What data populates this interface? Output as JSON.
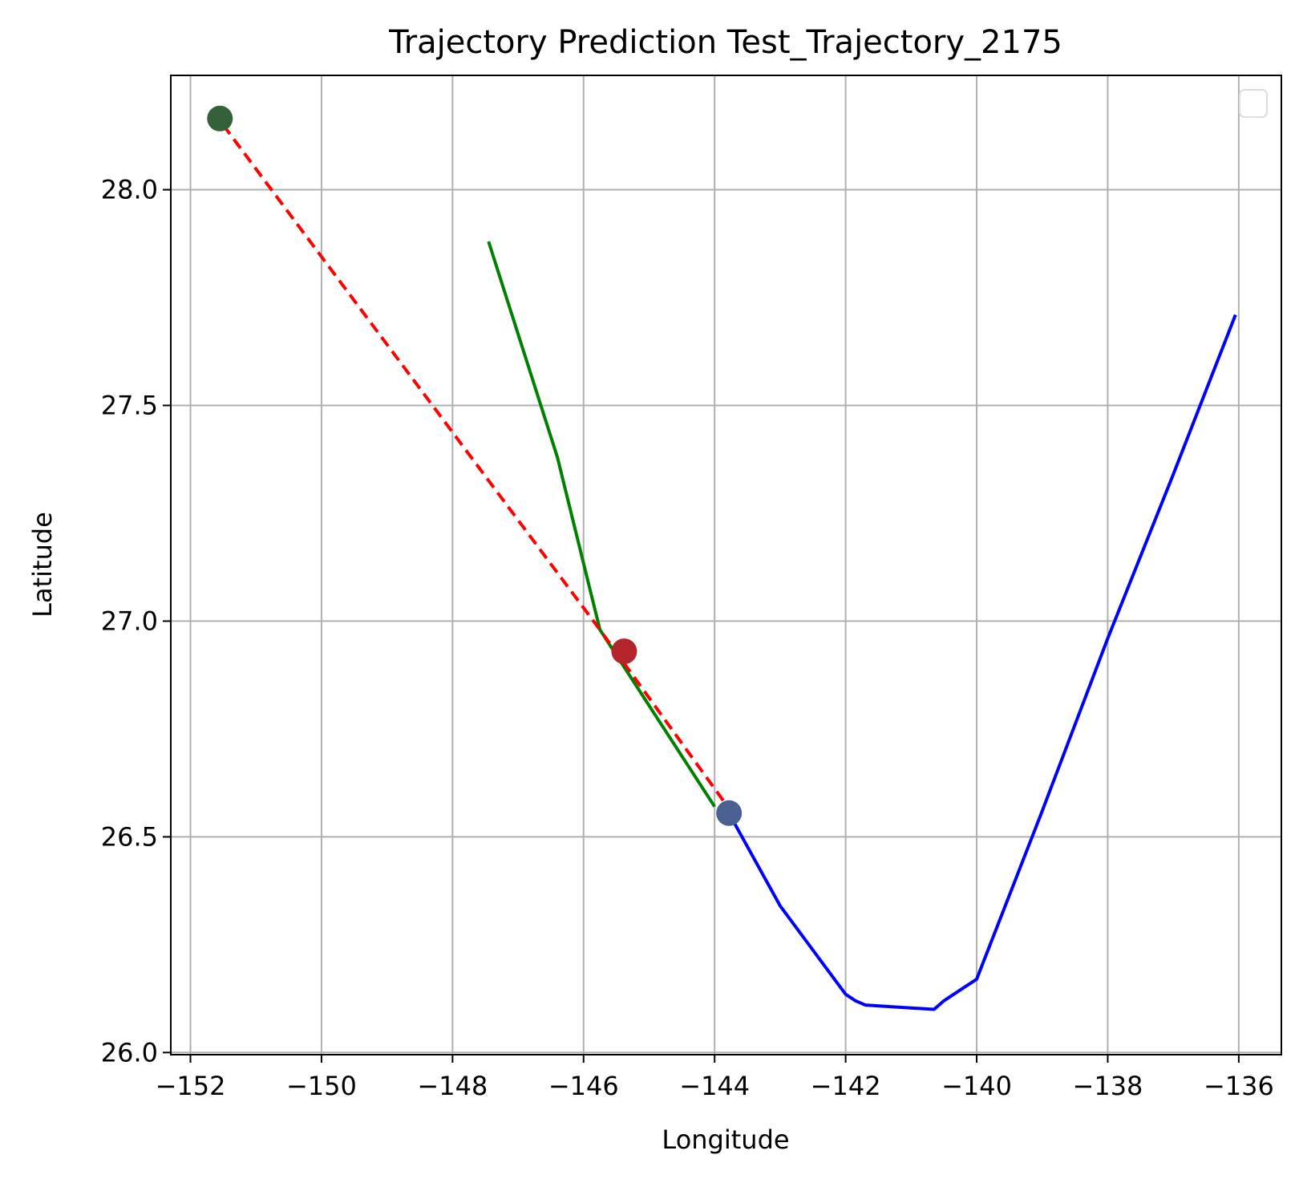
{
  "chart_data": {
    "type": "line",
    "title": "Trajectory Prediction Test_Trajectory_2175",
    "xlabel": "Longitude",
    "ylabel": "Latitude",
    "xlim": [
      -152.3,
      -135.35
    ],
    "ylim": [
      25.995,
      28.265
    ],
    "x_ticks": [
      -152,
      -150,
      -148,
      -146,
      -144,
      -142,
      -140,
      -138,
      -136
    ],
    "y_ticks": [
      26.0,
      26.5,
      27.0,
      27.5,
      28.0
    ],
    "x_tick_labels": [
      "−152",
      "−150",
      "−148",
      "−146",
      "−144",
      "−142",
      "−140",
      "−138",
      "−136"
    ],
    "y_tick_labels": [
      "26.0",
      "26.5",
      "27.0",
      "27.5",
      "28.0"
    ],
    "grid": true,
    "legend": "top-right (empty)",
    "series": [
      {
        "color": "#0000ff",
        "style": "solid",
        "x": [
          -136.05,
          -137.0,
          -138.0,
          -139.0,
          -140.0,
          -140.2,
          -140.5,
          -140.65,
          -141.2,
          -141.7,
          -141.85,
          -142.0,
          -143.0,
          -143.8
        ],
        "y": [
          27.71,
          27.34,
          26.96,
          26.56,
          26.17,
          26.15,
          26.12,
          26.1,
          26.105,
          26.11,
          26.12,
          26.135,
          26.34,
          26.56
        ]
      },
      {
        "color": "#008000",
        "style": "solid",
        "x": [
          -147.45,
          -146.4,
          -145.75,
          -144.0
        ],
        "y": [
          27.88,
          27.38,
          26.98,
          26.57
        ]
      },
      {
        "color": "#ff0000",
        "style": "dashed",
        "x": [
          -151.5,
          -145.75,
          -143.85
        ],
        "y": [
          28.15,
          26.98,
          26.58
        ]
      }
    ],
    "markers": [
      {
        "x": -151.55,
        "y": 28.165,
        "color": "#33613a"
      },
      {
        "x": -145.38,
        "y": 26.93,
        "color": "#b3242b"
      },
      {
        "x": -143.78,
        "y": 26.555,
        "color": "#4a6090"
      }
    ]
  }
}
